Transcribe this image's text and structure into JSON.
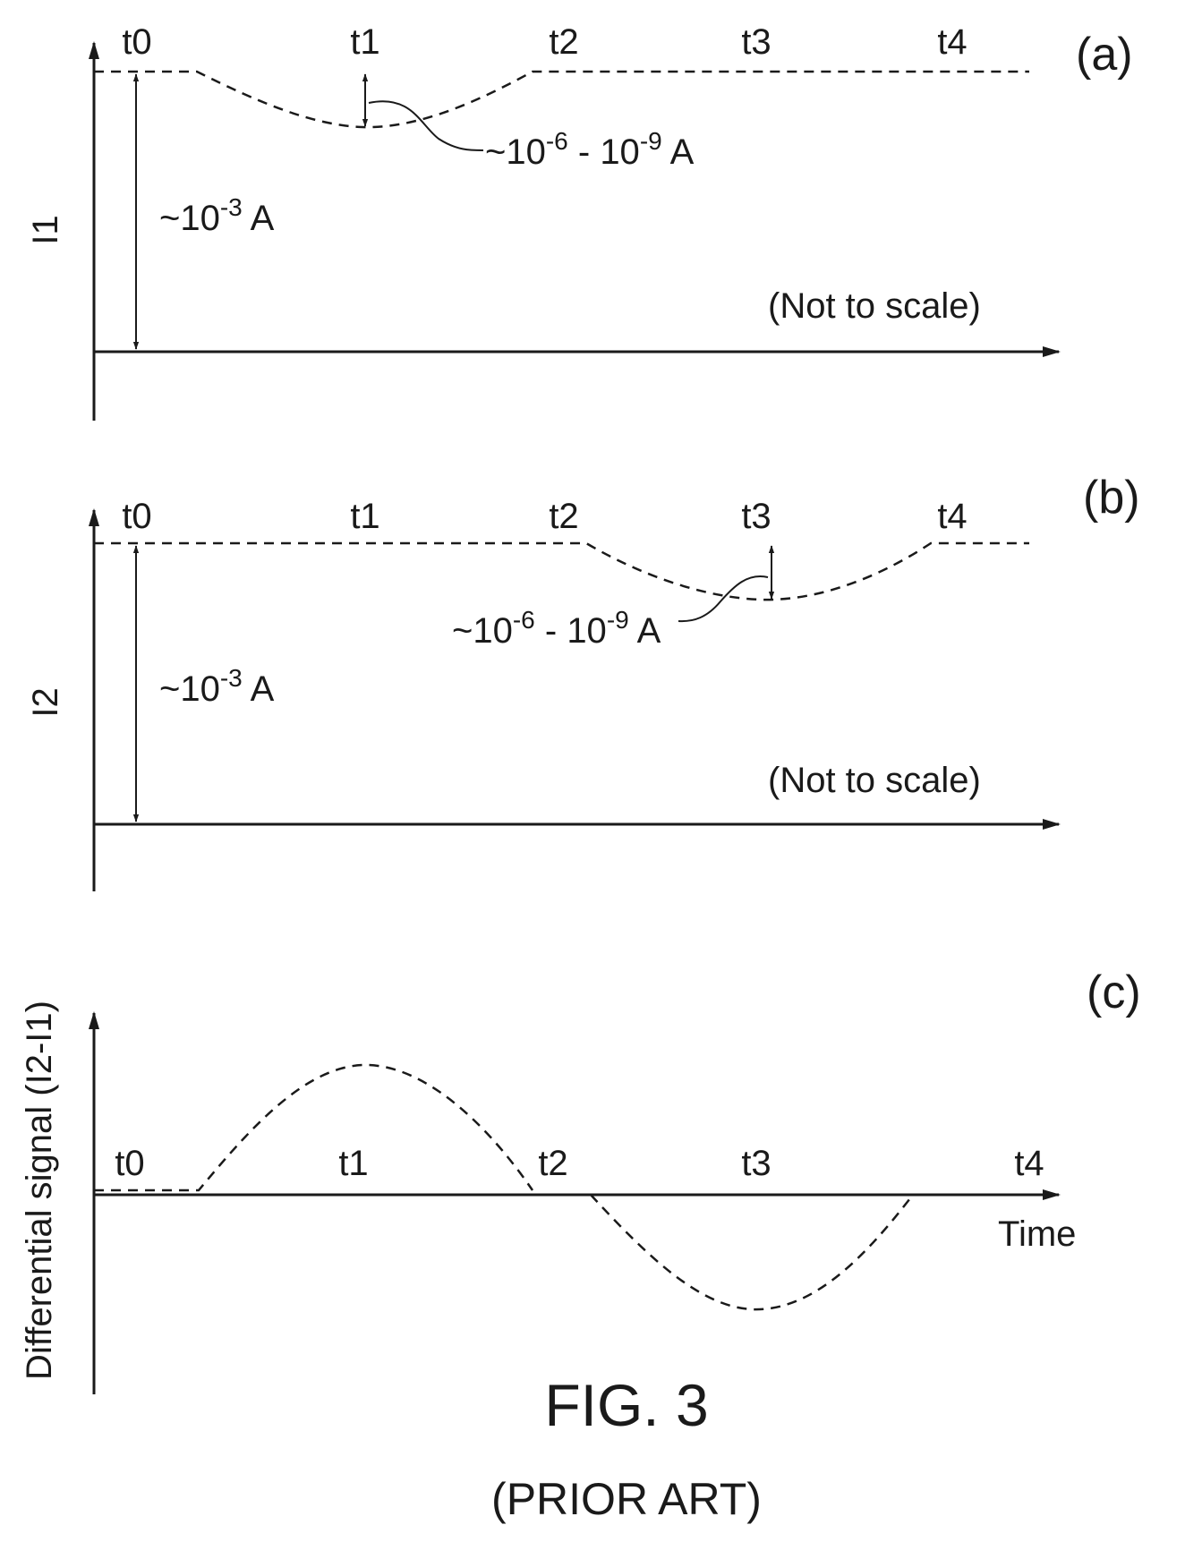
{
  "panels": {
    "a": {
      "letter": "(a)",
      "ylabel": "I1",
      "ticks": [
        "t0",
        "t1",
        "t2",
        "t3",
        "t4"
      ],
      "dc_magnitude": {
        "prefix": "~10",
        "exp": "-3",
        "unit": " A"
      },
      "dip_magnitude": {
        "prefix": "~10",
        "exp1": "-6",
        "mid": " - 10",
        "exp2": "-9",
        "unit": " A"
      },
      "note": "(Not to scale)"
    },
    "b": {
      "letter": "(b)",
      "ylabel": "I2",
      "ticks": [
        "t0",
        "t1",
        "t2",
        "t3",
        "t4"
      ],
      "dc_magnitude": {
        "prefix": "~10",
        "exp": "-3",
        "unit": " A"
      },
      "dip_magnitude": {
        "prefix": "~10",
        "exp1": "-6",
        "mid": " - 10",
        "exp2": "-9",
        "unit": " A"
      },
      "note": "(Not to scale)"
    },
    "c": {
      "letter": "(c)",
      "ylabel": "Differential signal (I2-I1)",
      "ticks": [
        "t0",
        "t1",
        "t2",
        "t3",
        "t4"
      ],
      "xlabel": "Time"
    }
  },
  "caption": {
    "title": "FIG. 3",
    "subtitle": "(PRIOR ART)"
  }
}
